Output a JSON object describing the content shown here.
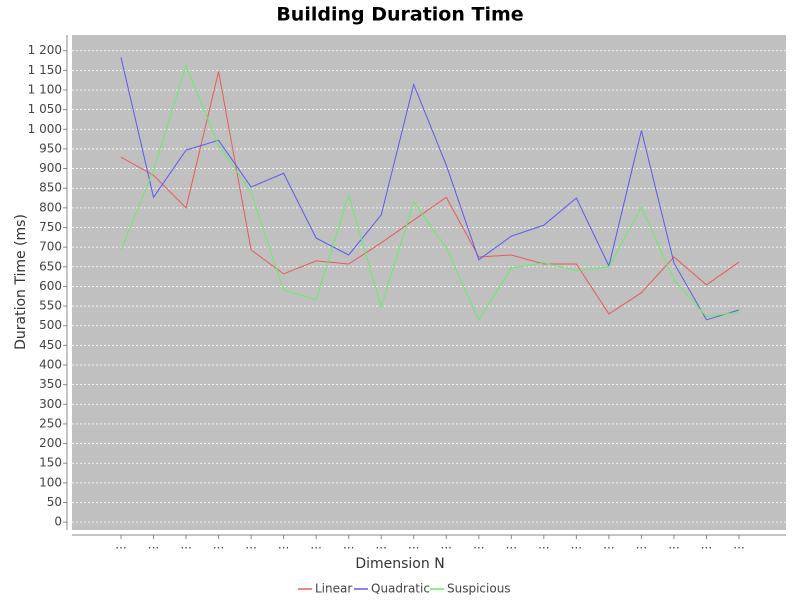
{
  "chart_data": {
    "type": "line",
    "title": "Building Duration Time",
    "xlabel": "Dimension N",
    "ylabel": "Duration Time (ms)",
    "categories": [
      "...",
      "...",
      "...",
      "...",
      "...",
      "...",
      "...",
      "...",
      "...",
      "...",
      "...",
      "...",
      "...",
      "...",
      "...",
      "...",
      "...",
      "...",
      "...",
      "..."
    ],
    "series": [
      {
        "name": "Linear",
        "color": "#e85a5a",
        "values": [
          929,
          883,
          800,
          1147,
          693,
          632,
          665,
          657,
          711,
          769,
          827,
          675,
          680,
          657,
          657,
          530,
          584,
          675,
          604,
          662
        ]
      },
      {
        "name": "Quadratic",
        "color": "#5a5aee",
        "values": [
          1183,
          827,
          947,
          972,
          853,
          888,
          723,
          680,
          782,
          1114,
          909,
          668,
          728,
          756,
          825,
          652,
          997,
          660,
          515,
          540
        ]
      },
      {
        "name": "Suspicious",
        "color": "#66ee66",
        "values": [
          693,
          896,
          1162,
          959,
          840,
          591,
          566,
          832,
          548,
          815,
          698,
          515,
          647,
          660,
          640,
          650,
          802,
          617,
          523,
          535
        ]
      }
    ],
    "ylim": [
      -20,
      1240
    ],
    "yticks": [
      0,
      50,
      100,
      150,
      200,
      250,
      300,
      350,
      400,
      450,
      500,
      550,
      600,
      650,
      700,
      750,
      800,
      850,
      900,
      950,
      {
        "value": 1000,
        "label": "1 000"
      },
      {
        "value": 1050,
        "label": "1 050"
      },
      {
        "value": 1100,
        "label": "1 100"
      },
      {
        "value": 1150,
        "label": "1 150"
      },
      {
        "value": 1200,
        "label": "1 200"
      }
    ],
    "grid": true,
    "legend": "bottom"
  }
}
